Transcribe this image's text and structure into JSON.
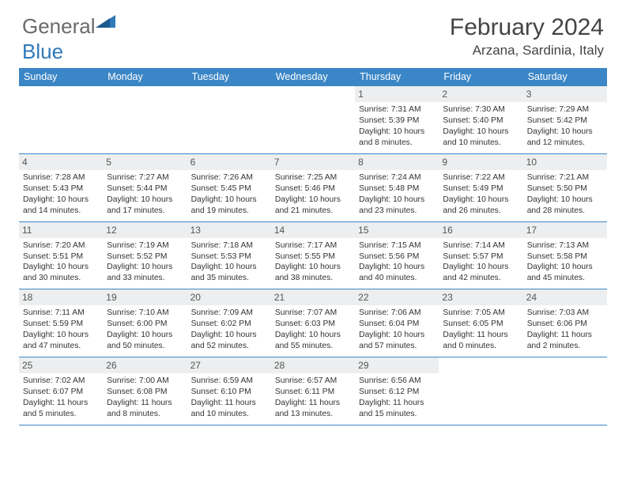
{
  "logo": {
    "text1": "General",
    "text2": "Blue"
  },
  "title": "February 2024",
  "location": "Arzana, Sardinia, Italy",
  "colors": {
    "header_bg": "#3b86c6",
    "logo_gray": "#6a6a6a",
    "logo_blue": "#2f79b9",
    "daynum_bg": "#eceeef",
    "border": "#3b86c6",
    "text": "#333333"
  },
  "weekdays": [
    "Sunday",
    "Monday",
    "Tuesday",
    "Wednesday",
    "Thursday",
    "Friday",
    "Saturday"
  ],
  "weeks": [
    [
      null,
      null,
      null,
      null,
      {
        "n": "1",
        "sr": "7:31 AM",
        "ss": "5:39 PM",
        "dl": "10 hours and 8 minutes."
      },
      {
        "n": "2",
        "sr": "7:30 AM",
        "ss": "5:40 PM",
        "dl": "10 hours and 10 minutes."
      },
      {
        "n": "3",
        "sr": "7:29 AM",
        "ss": "5:42 PM",
        "dl": "10 hours and 12 minutes."
      }
    ],
    [
      {
        "n": "4",
        "sr": "7:28 AM",
        "ss": "5:43 PM",
        "dl": "10 hours and 14 minutes."
      },
      {
        "n": "5",
        "sr": "7:27 AM",
        "ss": "5:44 PM",
        "dl": "10 hours and 17 minutes."
      },
      {
        "n": "6",
        "sr": "7:26 AM",
        "ss": "5:45 PM",
        "dl": "10 hours and 19 minutes."
      },
      {
        "n": "7",
        "sr": "7:25 AM",
        "ss": "5:46 PM",
        "dl": "10 hours and 21 minutes."
      },
      {
        "n": "8",
        "sr": "7:24 AM",
        "ss": "5:48 PM",
        "dl": "10 hours and 23 minutes."
      },
      {
        "n": "9",
        "sr": "7:22 AM",
        "ss": "5:49 PM",
        "dl": "10 hours and 26 minutes."
      },
      {
        "n": "10",
        "sr": "7:21 AM",
        "ss": "5:50 PM",
        "dl": "10 hours and 28 minutes."
      }
    ],
    [
      {
        "n": "11",
        "sr": "7:20 AM",
        "ss": "5:51 PM",
        "dl": "10 hours and 30 minutes."
      },
      {
        "n": "12",
        "sr": "7:19 AM",
        "ss": "5:52 PM",
        "dl": "10 hours and 33 minutes."
      },
      {
        "n": "13",
        "sr": "7:18 AM",
        "ss": "5:53 PM",
        "dl": "10 hours and 35 minutes."
      },
      {
        "n": "14",
        "sr": "7:17 AM",
        "ss": "5:55 PM",
        "dl": "10 hours and 38 minutes."
      },
      {
        "n": "15",
        "sr": "7:15 AM",
        "ss": "5:56 PM",
        "dl": "10 hours and 40 minutes."
      },
      {
        "n": "16",
        "sr": "7:14 AM",
        "ss": "5:57 PM",
        "dl": "10 hours and 42 minutes."
      },
      {
        "n": "17",
        "sr": "7:13 AM",
        "ss": "5:58 PM",
        "dl": "10 hours and 45 minutes."
      }
    ],
    [
      {
        "n": "18",
        "sr": "7:11 AM",
        "ss": "5:59 PM",
        "dl": "10 hours and 47 minutes."
      },
      {
        "n": "19",
        "sr": "7:10 AM",
        "ss": "6:00 PM",
        "dl": "10 hours and 50 minutes."
      },
      {
        "n": "20",
        "sr": "7:09 AM",
        "ss": "6:02 PM",
        "dl": "10 hours and 52 minutes."
      },
      {
        "n": "21",
        "sr": "7:07 AM",
        "ss": "6:03 PM",
        "dl": "10 hours and 55 minutes."
      },
      {
        "n": "22",
        "sr": "7:06 AM",
        "ss": "6:04 PM",
        "dl": "10 hours and 57 minutes."
      },
      {
        "n": "23",
        "sr": "7:05 AM",
        "ss": "6:05 PM",
        "dl": "11 hours and 0 minutes."
      },
      {
        "n": "24",
        "sr": "7:03 AM",
        "ss": "6:06 PM",
        "dl": "11 hours and 2 minutes."
      }
    ],
    [
      {
        "n": "25",
        "sr": "7:02 AM",
        "ss": "6:07 PM",
        "dl": "11 hours and 5 minutes."
      },
      {
        "n": "26",
        "sr": "7:00 AM",
        "ss": "6:08 PM",
        "dl": "11 hours and 8 minutes."
      },
      {
        "n": "27",
        "sr": "6:59 AM",
        "ss": "6:10 PM",
        "dl": "11 hours and 10 minutes."
      },
      {
        "n": "28",
        "sr": "6:57 AM",
        "ss": "6:11 PM",
        "dl": "11 hours and 13 minutes."
      },
      {
        "n": "29",
        "sr": "6:56 AM",
        "ss": "6:12 PM",
        "dl": "11 hours and 15 minutes."
      },
      null,
      null
    ]
  ],
  "labels": {
    "sunrise": "Sunrise:",
    "sunset": "Sunset:",
    "daylight": "Daylight:"
  }
}
